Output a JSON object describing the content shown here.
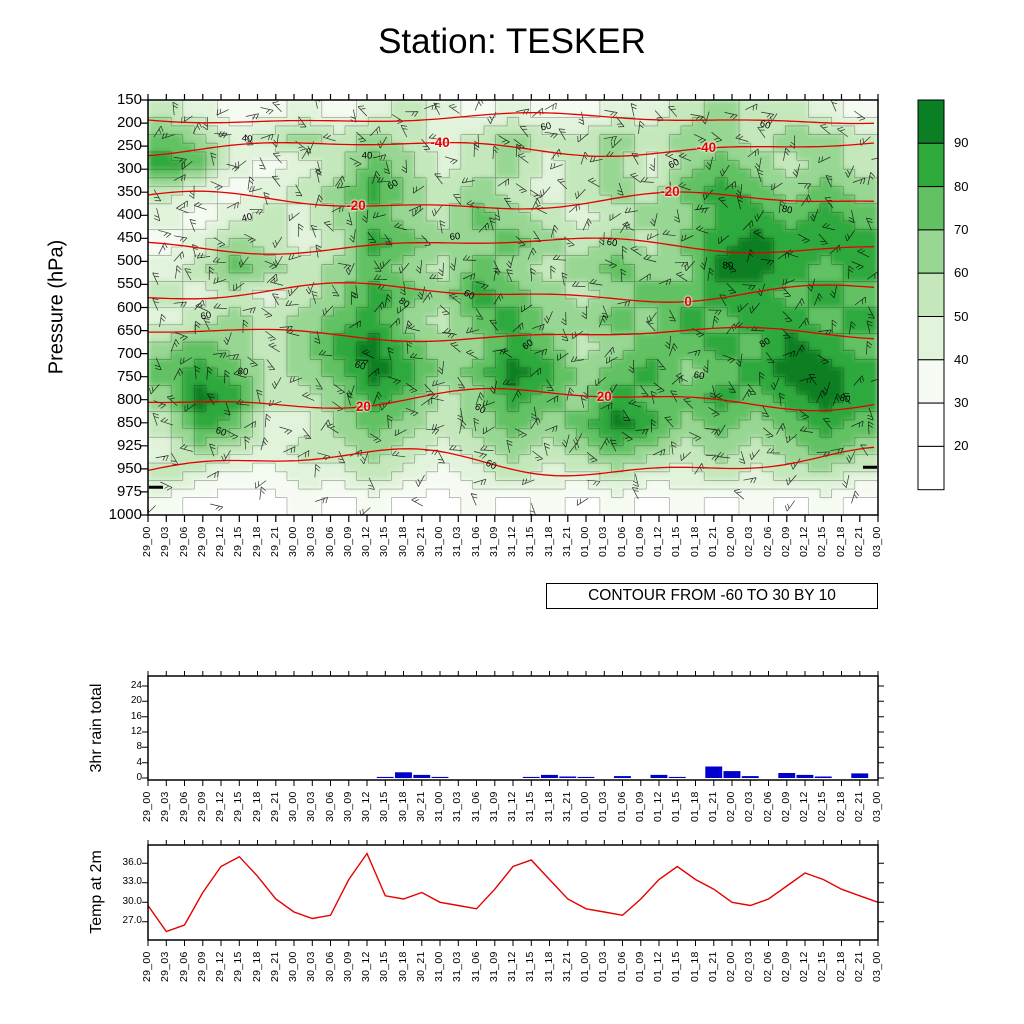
{
  "page": {
    "background": "#ffffff"
  },
  "colors": {
    "isotherm": "#e60000",
    "temp_line": "#e60000",
    "rain_bar": "#0000cd"
  },
  "chart_data": [
    {
      "type": "heatmap",
      "title": "Station: TESKER",
      "ylabel": "Pressure (hPa)",
      "contour_note": "CONTOUR FROM -60 TO 30 BY 10",
      "pressure_ticks": [
        150,
        200,
        250,
        300,
        350,
        400,
        450,
        500,
        550,
        600,
        650,
        700,
        750,
        800,
        850,
        925,
        950,
        975,
        1000
      ],
      "time_labels": [
        "29_00",
        "29_03",
        "29_06",
        "29_09",
        "29_12",
        "29_15",
        "29_18",
        "29_21",
        "30_00",
        "30_03",
        "30_06",
        "30_09",
        "30_12",
        "30_15",
        "30_18",
        "30_21",
        "31_00",
        "31_03",
        "31_06",
        "31_09",
        "31_12",
        "31_15",
        "31_18",
        "31_21",
        "01_00",
        "01_03",
        "01_06",
        "01_09",
        "01_12",
        "01_15",
        "01_18",
        "01_21",
        "02_00",
        "02_03",
        "02_06",
        "02_09",
        "02_12",
        "02_15",
        "02_18",
        "02_21",
        "03_00"
      ],
      "legend": {
        "labels": [
          90,
          80,
          70,
          60,
          50,
          40,
          30,
          20
        ],
        "colors_top_to_bottom": [
          "#0b7f23",
          "#2fa93c",
          "#62c263",
          "#98d793",
          "#c4e8bc",
          "#e1f3db",
          "#f5fbf2",
          "#ffffff",
          "#ffffff"
        ]
      },
      "isotherms": [
        {
          "label": "",
          "y": 0.045,
          "amp": 4,
          "label_x": []
        },
        {
          "label": "-40",
          "y": 0.115,
          "amp": 6,
          "label_x": [
            0.4,
            0.765
          ]
        },
        {
          "label": "-20",
          "y": 0.245,
          "amp": 7,
          "label_x": [
            0.285,
            0.715
          ]
        },
        {
          "label": "",
          "y": 0.35,
          "amp": 6,
          "label_x": []
        },
        {
          "label": "0",
          "y": 0.465,
          "amp": 7,
          "label_x": [
            0.74
          ]
        },
        {
          "label": "",
          "y": 0.565,
          "amp": 5,
          "label_x": []
        },
        {
          "label": "20",
          "y": 0.72,
          "amp": 8,
          "label_x": [
            0.295,
            0.625
          ]
        },
        {
          "label": "",
          "y": 0.875,
          "amp": 11,
          "label_x": []
        }
      ],
      "rh_point_labels": [
        {
          "text": "40",
          "x": 0.135,
          "y": 0.095
        },
        {
          "text": "60",
          "x": 0.545,
          "y": 0.065
        },
        {
          "text": "60",
          "x": 0.845,
          "y": 0.06
        },
        {
          "text": "40",
          "x": 0.3,
          "y": 0.135
        },
        {
          "text": "60",
          "x": 0.335,
          "y": 0.205
        },
        {
          "text": "60",
          "x": 0.72,
          "y": 0.155
        },
        {
          "text": "80",
          "x": 0.875,
          "y": 0.265
        },
        {
          "text": "40",
          "x": 0.135,
          "y": 0.285
        },
        {
          "text": "60",
          "x": 0.42,
          "y": 0.33
        },
        {
          "text": "60",
          "x": 0.635,
          "y": 0.345
        },
        {
          "text": "80",
          "x": 0.795,
          "y": 0.4
        },
        {
          "text": "60",
          "x": 0.08,
          "y": 0.52
        },
        {
          "text": "80",
          "x": 0.35,
          "y": 0.49
        },
        {
          "text": "60",
          "x": 0.44,
          "y": 0.47
        },
        {
          "text": "60",
          "x": 0.52,
          "y": 0.59
        },
        {
          "text": "80",
          "x": 0.13,
          "y": 0.655
        },
        {
          "text": "60",
          "x": 0.29,
          "y": 0.64
        },
        {
          "text": "80",
          "x": 0.845,
          "y": 0.585
        },
        {
          "text": "60",
          "x": 0.755,
          "y": 0.665
        },
        {
          "text": "80",
          "x": 0.955,
          "y": 0.72
        },
        {
          "text": "60",
          "x": 0.455,
          "y": 0.745
        },
        {
          "text": "60",
          "x": 0.1,
          "y": 0.8
        },
        {
          "text": "60",
          "x": 0.47,
          "y": 0.88
        }
      ],
      "rh_grid": [
        [
          55,
          45,
          35,
          35,
          45,
          35,
          45,
          55,
          45,
          35,
          45,
          35,
          35,
          45,
          45,
          55,
          65,
          55,
          55,
          45,
          35
        ],
        [
          75,
          65,
          45,
          55,
          65,
          55,
          65,
          55,
          45,
          55,
          65,
          55,
          55,
          65,
          55,
          65,
          65,
          55,
          65,
          65,
          55
        ],
        [
          85,
          75,
          45,
          35,
          45,
          55,
          75,
          65,
          45,
          55,
          65,
          45,
          55,
          65,
          45,
          65,
          75,
          65,
          55,
          65,
          55
        ],
        [
          55,
          45,
          35,
          45,
          55,
          65,
          85,
          65,
          55,
          65,
          55,
          45,
          55,
          65,
          55,
          75,
          85,
          75,
          65,
          75,
          65
        ],
        [
          45,
          35,
          45,
          55,
          45,
          65,
          75,
          65,
          55,
          75,
          65,
          55,
          45,
          55,
          65,
          65,
          85,
          85,
          75,
          85,
          75
        ],
        [
          35,
          45,
          65,
          55,
          45,
          55,
          85,
          75,
          65,
          65,
          75,
          65,
          55,
          65,
          55,
          75,
          85,
          95,
          85,
          85,
          85
        ],
        [
          45,
          55,
          75,
          65,
          55,
          65,
          75,
          65,
          55,
          75,
          65,
          55,
          65,
          75,
          65,
          65,
          95,
          95,
          85,
          75,
          85
        ],
        [
          55,
          45,
          55,
          45,
          55,
          65,
          85,
          75,
          65,
          85,
          75,
          65,
          55,
          65,
          75,
          75,
          85,
          85,
          75,
          85,
          75
        ],
        [
          45,
          55,
          65,
          55,
          65,
          75,
          85,
          65,
          55,
          75,
          85,
          65,
          65,
          75,
          65,
          85,
          75,
          85,
          85,
          75,
          85
        ],
        [
          65,
          75,
          65,
          55,
          65,
          85,
          95,
          75,
          65,
          65,
          85,
          75,
          55,
          65,
          75,
          75,
          85,
          75,
          95,
          85,
          75
        ],
        [
          75,
          85,
          75,
          55,
          65,
          75,
          95,
          85,
          65,
          75,
          95,
          85,
          65,
          75,
          85,
          65,
          75,
          85,
          95,
          95,
          85
        ],
        [
          65,
          95,
          85,
          55,
          55,
          65,
          85,
          75,
          55,
          65,
          85,
          75,
          65,
          85,
          75,
          75,
          85,
          75,
          85,
          95,
          85
        ],
        [
          55,
          85,
          75,
          45,
          45,
          65,
          75,
          65,
          55,
          65,
          75,
          65,
          75,
          95,
          85,
          65,
          75,
          65,
          75,
          85,
          75
        ],
        [
          45,
          65,
          55,
          45,
          55,
          55,
          65,
          55,
          45,
          55,
          65,
          55,
          65,
          75,
          65,
          55,
          65,
          55,
          65,
          75,
          65
        ],
        [
          55,
          45,
          35,
          35,
          45,
          45,
          55,
          45,
          35,
          45,
          55,
          45,
          45,
          55,
          45,
          45,
          55,
          45,
          55,
          55,
          45
        ],
        [
          35,
          25,
          25,
          25,
          35,
          25,
          35,
          25,
          25,
          35,
          25,
          35,
          25,
          35,
          25,
          35,
          25,
          35,
          25,
          35,
          25
        ]
      ]
    },
    {
      "type": "bar",
      "ylabel": "3hr rain total",
      "yticks": [
        0,
        4,
        8,
        12,
        16,
        20,
        24
      ],
      "categories": [
        "29_00",
        "29_03",
        "29_06",
        "29_09",
        "29_12",
        "29_15",
        "29_18",
        "29_21",
        "30_00",
        "30_03",
        "30_06",
        "30_09",
        "30_12",
        "30_15",
        "30_18",
        "30_21",
        "31_00",
        "31_03",
        "31_06",
        "31_09",
        "31_12",
        "31_15",
        "31_18",
        "31_21",
        "01_00",
        "01_03",
        "01_06",
        "01_09",
        "01_12",
        "01_15",
        "01_18",
        "01_21",
        "02_00",
        "02_03",
        "02_06",
        "02_09",
        "02_12",
        "02_15",
        "02_18",
        "02_21",
        "03_00"
      ],
      "values": [
        0,
        0,
        0,
        0,
        0,
        0,
        0,
        0,
        0,
        0,
        0,
        0,
        0,
        0.3,
        1.5,
        0.8,
        0.3,
        0,
        0,
        0,
        0,
        0.3,
        0.8,
        0.4,
        0.3,
        0,
        0.5,
        0,
        0.8,
        0.3,
        0,
        3,
        1.8,
        0.5,
        0,
        1.3,
        0.8,
        0.4,
        0,
        1.2,
        0
      ]
    },
    {
      "type": "line",
      "ylabel": "Temp at 2m",
      "yticks": [
        27,
        30,
        33,
        36
      ],
      "ytick_labels": [
        "27.0",
        "30.0",
        "33.0",
        "36.0"
      ],
      "categories": [
        "29_00",
        "29_03",
        "29_06",
        "29_09",
        "29_12",
        "29_15",
        "29_18",
        "29_21",
        "30_00",
        "30_03",
        "30_06",
        "30_09",
        "30_12",
        "30_15",
        "30_18",
        "30_21",
        "31_00",
        "31_03",
        "31_06",
        "31_09",
        "31_12",
        "31_15",
        "31_18",
        "31_21",
        "01_00",
        "01_03",
        "01_06",
        "01_09",
        "01_12",
        "01_15",
        "01_18",
        "01_21",
        "02_00",
        "02_03",
        "02_06",
        "02_09",
        "02_12",
        "02_15",
        "02_18",
        "02_21",
        "03_00"
      ],
      "values": [
        29.5,
        25.5,
        26.5,
        31.5,
        35.5,
        37,
        34,
        30.5,
        28.5,
        27.5,
        28,
        33.5,
        37.5,
        31,
        30.5,
        31.5,
        30,
        29.5,
        29,
        32,
        35.5,
        36.5,
        33.5,
        30.5,
        29,
        28.5,
        28,
        30.5,
        33.5,
        35.5,
        33.5,
        32,
        30,
        29.5,
        30.5,
        32.5,
        34.5,
        33.5,
        32,
        31,
        30
      ]
    }
  ]
}
